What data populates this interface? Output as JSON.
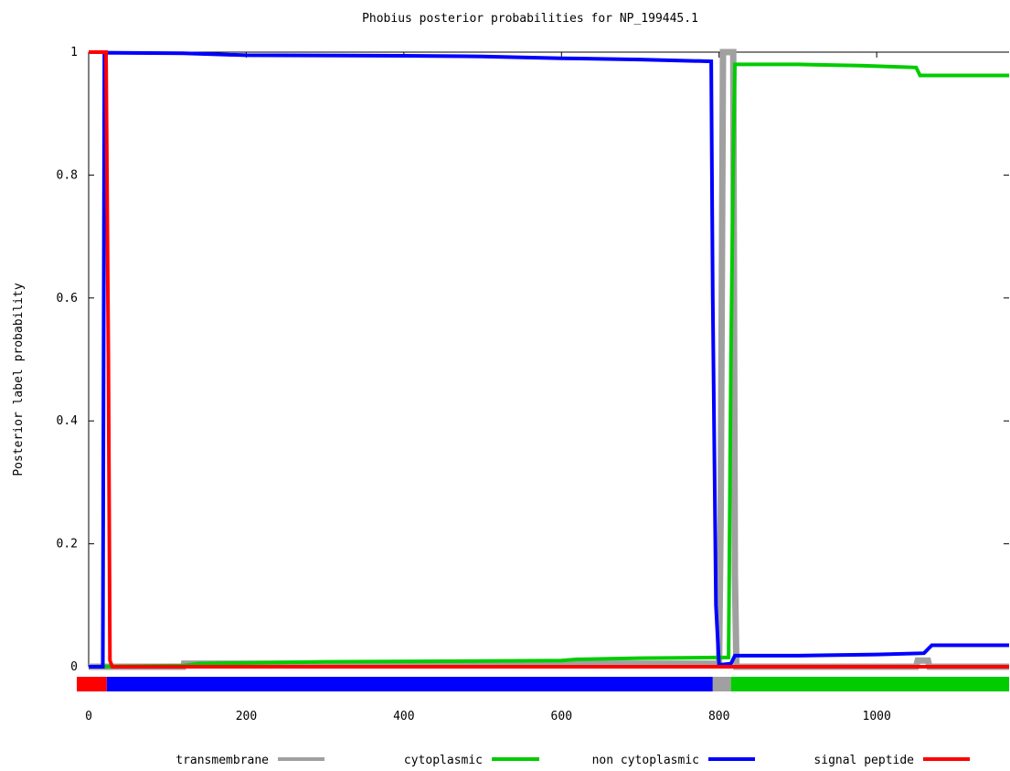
{
  "chart_data": {
    "type": "line",
    "title": "Phobius posterior probabilities for NP_199445.1",
    "xlabel": "",
    "ylabel": "Posterior label probability",
    "xlim": [
      0,
      1168
    ],
    "ylim": [
      0,
      1
    ],
    "xticks": [
      0,
      200,
      400,
      600,
      800,
      1000
    ],
    "yticks": [
      0,
      0.2,
      0.4,
      0.6,
      0.8,
      1
    ],
    "ytick_labels": [
      "0",
      "0.2",
      "0.4",
      "0.6",
      "0.8",
      "1"
    ],
    "legend_position": "bottom",
    "series": [
      {
        "name": "transmembrane",
        "color": "#a0a0a0",
        "points": [
          [
            0,
            0
          ],
          [
            120,
            0
          ],
          [
            121,
            0.005
          ],
          [
            800,
            0.005
          ],
          [
            802,
            0.25
          ],
          [
            805,
            1
          ],
          [
            818,
            1
          ],
          [
            820,
            0.15
          ],
          [
            822,
            0
          ],
          [
            1050,
            0
          ],
          [
            1052,
            0.01
          ],
          [
            1065,
            0.01
          ],
          [
            1067,
            0
          ],
          [
            1168,
            0
          ]
        ]
      },
      {
        "name": "cytoplasmic",
        "color": "#00cc00",
        "points": [
          [
            0,
            0
          ],
          [
            120,
            0.002
          ],
          [
            140,
            0.005
          ],
          [
            300,
            0.008
          ],
          [
            600,
            0.01
          ],
          [
            620,
            0.012
          ],
          [
            700,
            0.014
          ],
          [
            800,
            0.015
          ],
          [
            812,
            0.015
          ],
          [
            815,
            0.5
          ],
          [
            818,
            0.82
          ],
          [
            820,
            0.98
          ],
          [
            900,
            0.98
          ],
          [
            980,
            0.978
          ],
          [
            1050,
            0.975
          ],
          [
            1055,
            0.962
          ],
          [
            1168,
            0.962
          ]
        ]
      },
      {
        "name": "non cytoplasmic",
        "color": "#0000ff",
        "points": [
          [
            0,
            0
          ],
          [
            18,
            0
          ],
          [
            20,
            0.999
          ],
          [
            120,
            0.998
          ],
          [
            200,
            0.995
          ],
          [
            400,
            0.994
          ],
          [
            500,
            0.993
          ],
          [
            600,
            0.99
          ],
          [
            700,
            0.988
          ],
          [
            790,
            0.985
          ],
          [
            792,
            0.6
          ],
          [
            796,
            0.1
          ],
          [
            800,
            0.003
          ],
          [
            815,
            0.005
          ],
          [
            820,
            0.018
          ],
          [
            900,
            0.018
          ],
          [
            1000,
            0.02
          ],
          [
            1060,
            0.022
          ],
          [
            1070,
            0.035
          ],
          [
            1168,
            0.035
          ]
        ]
      },
      {
        "name": "signal peptide",
        "color": "#ff0000",
        "points": [
          [
            0,
            1
          ],
          [
            22,
            1
          ],
          [
            25,
            0.5
          ],
          [
            27,
            0.01
          ],
          [
            30,
            0
          ],
          [
            1168,
            0
          ]
        ]
      }
    ],
    "predicted_segments": [
      {
        "label": "signal peptide",
        "color": "#ff0000",
        "start": 0,
        "end": 23
      },
      {
        "label": "non cytoplasmic",
        "color": "#0000ff",
        "start": 23,
        "end": 792
      },
      {
        "label": "transmembrane",
        "color": "#a0a0a0",
        "start": 792,
        "end": 815
      },
      {
        "label": "cytoplasmic",
        "color": "#00cc00",
        "start": 815,
        "end": 1168
      }
    ]
  }
}
